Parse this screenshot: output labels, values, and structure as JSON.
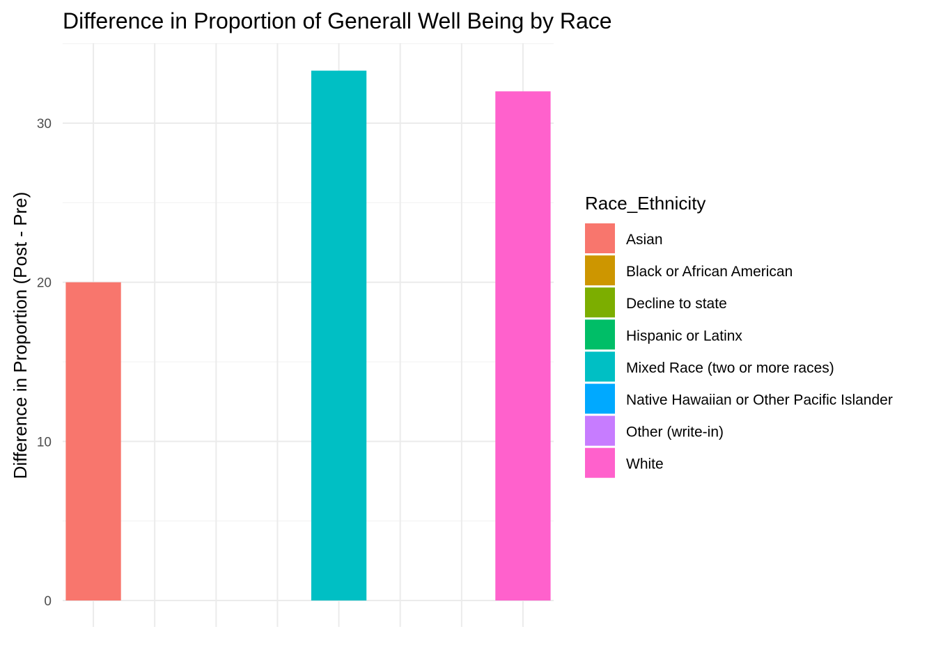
{
  "chart_data": {
    "type": "bar",
    "title": "Difference in Proportion of Generall Well Being by Race",
    "xlabel": "",
    "ylabel": "Difference in Proportion (Post - Pre)",
    "ylim": [
      0,
      35
    ],
    "yticks": [
      0,
      10,
      20,
      30
    ],
    "grid": true,
    "legend": {
      "title": "Race_Ethnicity",
      "placement": "right"
    },
    "categories": [
      "Asian",
      "Black or African American",
      "Decline to state",
      "Hispanic or Latinx",
      "Mixed Race (two or more races)",
      "Native Hawaiian or Other Pacific Islander",
      "Other (write-in)",
      "White"
    ],
    "values": [
      20,
      0,
      0,
      0,
      33.3,
      0,
      0,
      32
    ],
    "colors": [
      "#F8766D",
      "#CD9600",
      "#7CAE00",
      "#00BE67",
      "#00BFC4",
      "#00A9FF",
      "#C77CFF",
      "#FF61CC"
    ]
  }
}
